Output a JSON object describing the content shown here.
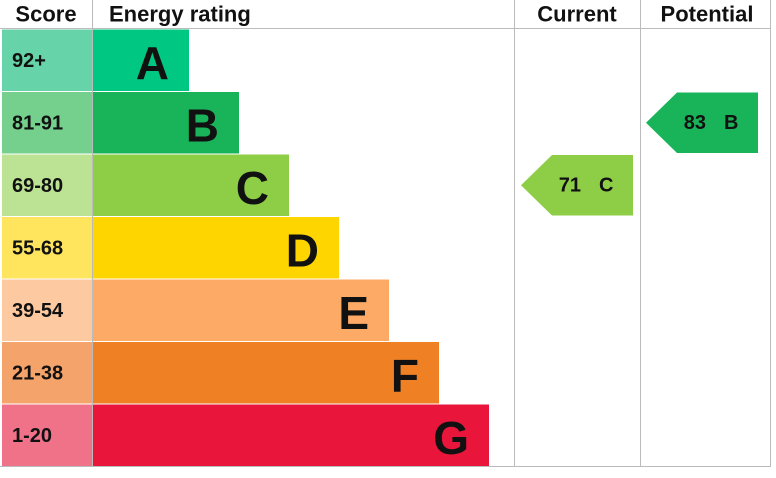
{
  "header": {
    "score": "Score",
    "rating": "Energy rating",
    "current": "Current",
    "potential": "Potential"
  },
  "bands": [
    {
      "score": "92+",
      "letter": "A",
      "color": "#00c781",
      "light": "#66d3a9"
    },
    {
      "score": "81-91",
      "letter": "B",
      "color": "#19b459",
      "light": "#75d08d"
    },
    {
      "score": "69-80",
      "letter": "C",
      "color": "#8dce46",
      "light": "#bce293"
    },
    {
      "score": "55-68",
      "letter": "D",
      "color": "#ffd500",
      "light": "#ffe45e"
    },
    {
      "score": "39-54",
      "letter": "E",
      "color": "#fcaa65",
      "light": "#fdc9a0"
    },
    {
      "score": "21-38",
      "letter": "F",
      "color": "#ef8023",
      "light": "#f4a46a"
    },
    {
      "score": "1-20",
      "letter": "G",
      "color": "#e9153b",
      "light": "#f07289"
    }
  ],
  "current": {
    "score": 71,
    "letter": "C"
  },
  "potential": {
    "score": 83,
    "letter": "B"
  }
}
